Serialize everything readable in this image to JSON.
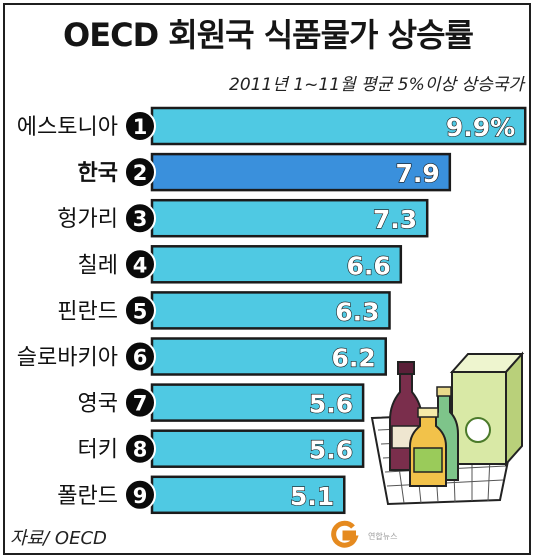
{
  "title": "OECD 회원국 식품물가 상승률",
  "subtitle": "2011년 1~11월 평균 5%이상 상승국가",
  "source": "자료/ OECD",
  "watermark": "연합뉴스",
  "colors": {
    "bar": "#4fc9e3",
    "highlight_bar": "#3a90dc",
    "bar_stroke": "#1b1b1b",
    "badge": "#0a0a0a"
  },
  "chart_data": {
    "type": "bar",
    "orientation": "horizontal",
    "categories": [
      "에스토니아",
      "한국",
      "헝가리",
      "칠레",
      "핀란드",
      "슬로바키아",
      "영국",
      "터키",
      "폴란드"
    ],
    "ranks": [
      "1",
      "2",
      "3",
      "4",
      "5",
      "6",
      "7",
      "8",
      "9"
    ],
    "values": [
      9.9,
      7.9,
      7.3,
      6.6,
      6.3,
      6.2,
      5.6,
      5.6,
      5.1
    ],
    "value_labels": [
      "9.9%",
      "7.9",
      "7.3",
      "6.6",
      "6.3",
      "6.2",
      "5.6",
      "5.6",
      "5.1"
    ],
    "highlight_category": "한국",
    "xlabel": "",
    "ylabel": "",
    "grid": false,
    "legend": "none"
  }
}
